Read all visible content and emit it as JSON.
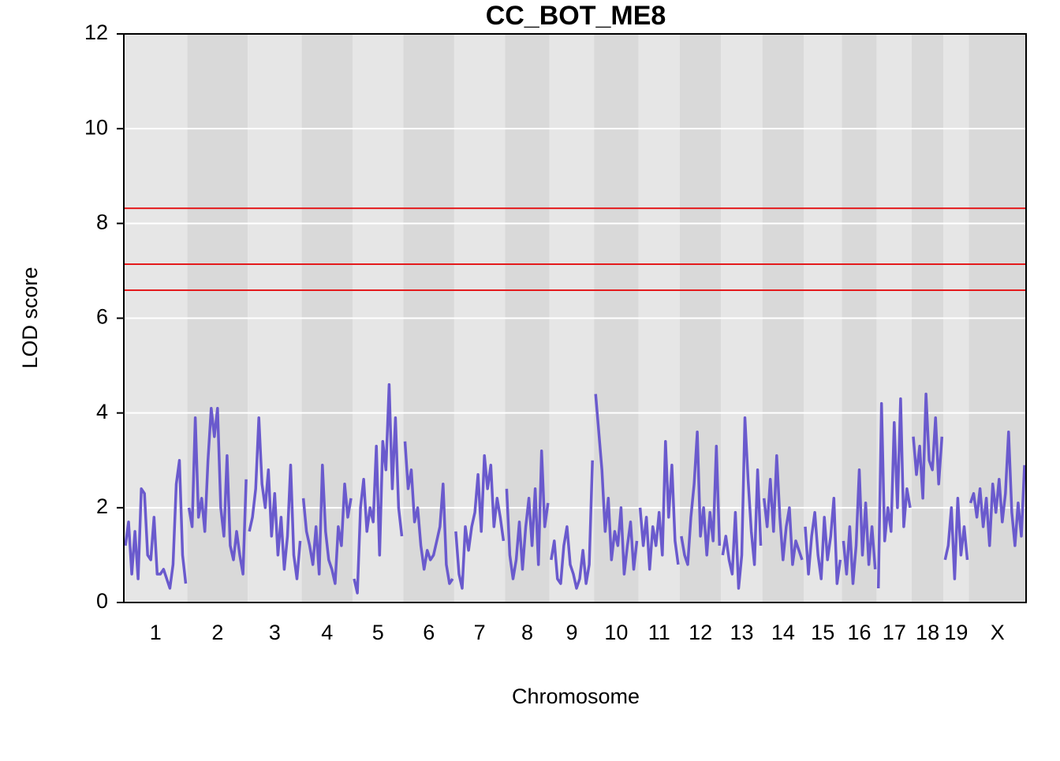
{
  "chart_data": {
    "type": "line",
    "title": "CC_BOT_ME8",
    "x_label": "Chromosome",
    "y_label": "LOD score",
    "ylim": [
      0,
      12
    ],
    "yticks": [
      0,
      2,
      4,
      6,
      8,
      10,
      12
    ],
    "grid": true,
    "color": "#6a5acd",
    "threshold_color": "#e41a1c",
    "thresholds": [
      8.32,
      7.14,
      6.59
    ],
    "band_colors": [
      "#e6e6e6",
      "#d9d9d9"
    ],
    "chromosomes": [
      {
        "name": "1",
        "values": [
          1.2,
          1.7,
          0.6,
          1.5,
          0.5,
          2.4,
          2.3,
          1.0,
          0.9,
          1.8,
          0.6,
          0.6,
          0.7,
          0.5,
          0.3,
          0.8,
          2.5,
          3.0,
          1.0,
          0.4
        ]
      },
      {
        "name": "2",
        "values": [
          2.0,
          1.6,
          3.9,
          1.8,
          2.2,
          1.5,
          3.0,
          4.1,
          3.5,
          4.1,
          2.0,
          1.4,
          3.1,
          1.2,
          0.9,
          1.5,
          1.0,
          0.6,
          2.6
        ]
      },
      {
        "name": "3",
        "values": [
          1.5,
          1.8,
          2.4,
          3.9,
          2.5,
          2.0,
          2.8,
          1.4,
          2.3,
          1.0,
          1.8,
          0.7,
          1.4,
          2.9,
          1.0,
          0.5,
          1.3
        ]
      },
      {
        "name": "4",
        "values": [
          2.2,
          1.5,
          1.2,
          0.8,
          1.6,
          0.6,
          2.9,
          1.5,
          0.9,
          0.7,
          0.4,
          1.6,
          1.2,
          2.5,
          1.8,
          2.2
        ]
      },
      {
        "name": "5",
        "values": [
          0.5,
          0.2,
          2.0,
          2.6,
          1.5,
          2.0,
          1.7,
          3.3,
          1.0,
          3.4,
          2.8,
          4.6,
          2.4,
          3.9,
          2.0,
          1.4
        ]
      },
      {
        "name": "6",
        "values": [
          3.4,
          2.4,
          2.8,
          1.7,
          2.0,
          1.2,
          0.7,
          1.1,
          0.9,
          1.0,
          1.3,
          1.6,
          2.5,
          0.8,
          0.4,
          0.5
        ]
      },
      {
        "name": "7",
        "values": [
          1.5,
          0.6,
          0.3,
          1.6,
          1.1,
          1.6,
          1.9,
          2.7,
          1.5,
          3.1,
          2.4,
          2.9,
          1.6,
          2.2,
          1.8,
          1.3
        ]
      },
      {
        "name": "8",
        "values": [
          2.4,
          1.0,
          0.5,
          0.9,
          1.7,
          0.7,
          1.6,
          2.2,
          1.2,
          2.4,
          0.8,
          3.2,
          1.6,
          2.1
        ]
      },
      {
        "name": "9",
        "values": [
          0.9,
          1.3,
          0.5,
          0.4,
          1.2,
          1.6,
          0.8,
          0.6,
          0.3,
          0.5,
          1.1,
          0.4,
          0.8,
          3.0
        ]
      },
      {
        "name": "10",
        "values": [
          4.4,
          3.6,
          2.8,
          1.5,
          2.2,
          0.9,
          1.5,
          1.2,
          2.0,
          0.6,
          1.2,
          1.7,
          0.7,
          1.3
        ]
      },
      {
        "name": "11",
        "values": [
          2.0,
          1.2,
          1.8,
          0.7,
          1.6,
          1.2,
          1.9,
          1.0,
          3.4,
          1.8,
          2.9,
          1.3,
          0.8
        ]
      },
      {
        "name": "12",
        "values": [
          1.4,
          1.0,
          0.8,
          1.8,
          2.5,
          3.6,
          1.4,
          2.0,
          1.0,
          1.9,
          1.3,
          3.3,
          1.2
        ]
      },
      {
        "name": "13",
        "values": [
          1.0,
          1.4,
          0.9,
          0.6,
          1.9,
          0.3,
          1.0,
          3.9,
          2.6,
          1.5,
          0.8,
          2.8,
          1.2
        ]
      },
      {
        "name": "14",
        "values": [
          2.2,
          1.6,
          2.6,
          1.5,
          3.1,
          1.8,
          0.9,
          1.6,
          2.0,
          0.8,
          1.3,
          1.1,
          0.9
        ]
      },
      {
        "name": "15",
        "values": [
          1.6,
          0.6,
          1.4,
          1.9,
          1.0,
          0.5,
          1.8,
          0.9,
          1.4,
          2.2,
          0.4,
          0.9
        ]
      },
      {
        "name": "16",
        "values": [
          1.3,
          0.6,
          1.6,
          0.4,
          1.2,
          2.8,
          1.0,
          2.1,
          0.8,
          1.6,
          0.7
        ]
      },
      {
        "name": "17",
        "values": [
          0.3,
          4.2,
          1.3,
          2.0,
          1.5,
          3.8,
          2.0,
          4.3,
          1.6,
          2.4,
          2.0
        ]
      },
      {
        "name": "18",
        "values": [
          3.5,
          2.7,
          3.3,
          2.2,
          4.4,
          3.0,
          2.8,
          3.9,
          2.5,
          3.5
        ]
      },
      {
        "name": "19",
        "values": [
          0.9,
          1.2,
          2.0,
          0.5,
          2.2,
          1.0,
          1.6,
          0.9
        ]
      },
      {
        "name": "X",
        "values": [
          2.1,
          2.3,
          1.8,
          2.4,
          1.6,
          2.2,
          1.2,
          2.5,
          1.9,
          2.6,
          1.7,
          2.3,
          3.6,
          1.9,
          1.2,
          2.1,
          1.4,
          2.9
        ]
      }
    ]
  }
}
